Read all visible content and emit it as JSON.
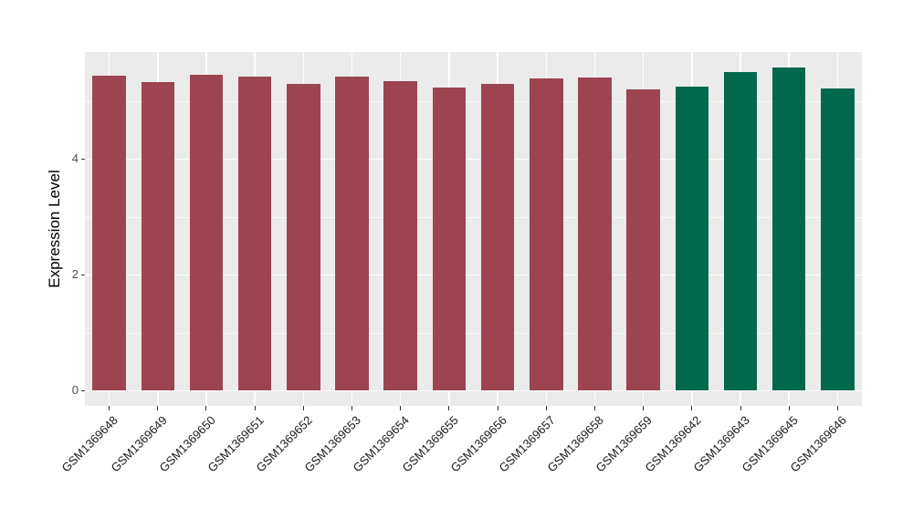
{
  "chart_data": {
    "type": "bar",
    "title": "",
    "xlabel": "",
    "ylabel": "Expression Level",
    "ylim": [
      -0.27,
      5.85
    ],
    "yticks": [
      0,
      2,
      4
    ],
    "minor_yticks": [
      1,
      3,
      5
    ],
    "grid": "on",
    "legend": "none",
    "group_colors": {
      "maroon": "#9D4452",
      "green": "#01684C"
    },
    "bars": [
      {
        "label": "GSM1369648",
        "value": 5.44,
        "group": "maroon"
      },
      {
        "label": "GSM1369649",
        "value": 5.33,
        "group": "maroon"
      },
      {
        "label": "GSM1369650",
        "value": 5.45,
        "group": "maroon"
      },
      {
        "label": "GSM1369651",
        "value": 5.42,
        "group": "maroon"
      },
      {
        "label": "GSM1369652",
        "value": 5.3,
        "group": "maroon"
      },
      {
        "label": "GSM1369653",
        "value": 5.43,
        "group": "maroon"
      },
      {
        "label": "GSM1369654",
        "value": 5.34,
        "group": "maroon"
      },
      {
        "label": "GSM1369655",
        "value": 5.23,
        "group": "maroon"
      },
      {
        "label": "GSM1369656",
        "value": 5.3,
        "group": "maroon"
      },
      {
        "label": "GSM1369657",
        "value": 5.4,
        "group": "maroon"
      },
      {
        "label": "GSM1369658",
        "value": 5.41,
        "group": "maroon"
      },
      {
        "label": "GSM1369659",
        "value": 5.21,
        "group": "maroon"
      },
      {
        "label": "GSM1369642",
        "value": 5.26,
        "group": "green"
      },
      {
        "label": "GSM1369643",
        "value": 5.5,
        "group": "green"
      },
      {
        "label": "GSM1369645",
        "value": 5.58,
        "group": "green"
      },
      {
        "label": "GSM1369646",
        "value": 5.22,
        "group": "green"
      }
    ]
  },
  "style": {
    "background": "#FFFFFF",
    "panel_bg": "#EBEBEB",
    "grid_color": "#FFFFFF",
    "axis_tick_color": "#333333",
    "ytick_label_color": "#4D4D4D",
    "xtick_label_color": "#1A1A1A"
  }
}
